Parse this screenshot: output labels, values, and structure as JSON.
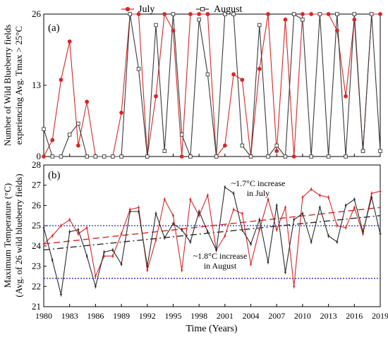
{
  "chart_data": [
    {
      "type": "line",
      "panel_label": "(a)",
      "ylabel_lines": [
        "Number of Wild Blueberry fields",
        "experiencing Avg. Tmax > 25°C"
      ],
      "ylim": [
        0,
        26
      ],
      "yticks": [
        0,
        13,
        26
      ],
      "legend_position": "top",
      "x": [
        1980,
        1981,
        1982,
        1983,
        1984,
        1985,
        1986,
        1987,
        1988,
        1989,
        1990,
        1991,
        1992,
        1993,
        1994,
        1995,
        1996,
        1997,
        1998,
        1999,
        2000,
        2001,
        2002,
        2003,
        2004,
        2005,
        2006,
        2007,
        2008,
        2009,
        2010,
        2011,
        2012,
        2013,
        2014,
        2015,
        2016,
        2017,
        2018,
        2019
      ],
      "series": [
        {
          "name": "July",
          "color": "#d62728",
          "marker": "circle-filled",
          "values": [
            0,
            3,
            14,
            21,
            2,
            10,
            0,
            0,
            0,
            8,
            26,
            26,
            0,
            11,
            26,
            23,
            0,
            26,
            26,
            26,
            0,
            2,
            15,
            14,
            0,
            16,
            26,
            1,
            25,
            0,
            26,
            26,
            26,
            26,
            23,
            11,
            25,
            1,
            26,
            26
          ]
        },
        {
          "name": "August",
          "color": "#3a3a3a",
          "marker": "square-open",
          "values": [
            5,
            0,
            0,
            4,
            6,
            0,
            0,
            0,
            0,
            0,
            26,
            16,
            0,
            24,
            1,
            26,
            4,
            0,
            25,
            15,
            0,
            26,
            26,
            2,
            0,
            24,
            0,
            2,
            0,
            26,
            25,
            0,
            26,
            0,
            26,
            0,
            26,
            1,
            26,
            1
          ]
        }
      ]
    },
    {
      "type": "line",
      "panel_label": "(b)",
      "xlabel": "Time (Years)",
      "ylabel_lines": [
        "Maximum Temperature (°C)",
        "(Avg. of 26 wild blueberry fields)"
      ],
      "ylim": [
        21,
        28
      ],
      "yticks": [
        21,
        22,
        23,
        24,
        25,
        26,
        27,
        28
      ],
      "xticks": [
        1980,
        1983,
        1986,
        1989,
        1992,
        1995,
        1998,
        2001,
        2004,
        2007,
        2010,
        2013,
        2016,
        2019
      ],
      "x": [
        1980,
        1981,
        1982,
        1983,
        1984,
        1985,
        1986,
        1987,
        1988,
        1989,
        1990,
        1991,
        1992,
        1993,
        1994,
        1995,
        1996,
        1997,
        1998,
        1999,
        2000,
        2001,
        2002,
        2003,
        2004,
        2005,
        2006,
        2007,
        2008,
        2009,
        2010,
        2011,
        2012,
        2013,
        2014,
        2015,
        2016,
        2017,
        2018,
        2019
      ],
      "series": [
        {
          "name": "July",
          "color": "#d62728",
          "values": [
            24.1,
            24.5,
            25.0,
            25.3,
            24.6,
            24.9,
            22.5,
            23.5,
            23.5,
            24.6,
            25.8,
            25.9,
            22.8,
            24.3,
            26.3,
            25.5,
            22.8,
            26.3,
            25.5,
            26.5,
            23.8,
            24.5,
            25.8,
            25.6,
            23.1,
            24.8,
            26.3,
            24.8,
            25.9,
            22.0,
            26.4,
            26.8,
            26.5,
            26.4,
            25.0,
            24.9,
            25.9,
            24.6,
            26.6,
            26.7
          ]
        },
        {
          "name": "August",
          "color": "#2b2b2b",
          "values": [
            24.9,
            23.3,
            21.6,
            24.7,
            24.8,
            23.5,
            22.0,
            23.7,
            23.8,
            23.1,
            25.7,
            25.7,
            23.0,
            25.6,
            24.4,
            25.1,
            24.8,
            24.2,
            25.7,
            24.7,
            23.8,
            26.9,
            26.6,
            24.8,
            24.1,
            25.3,
            23.2,
            26.0,
            22.7,
            25.3,
            25.6,
            24.2,
            25.9,
            24.5,
            24.2,
            26.0,
            26.3,
            24.7,
            26.4,
            24.6
          ]
        }
      ],
      "trendlines": [
        {
          "series": "July",
          "start": [
            1980,
            24.1
          ],
          "end": [
            2019,
            25.9
          ],
          "style": "dashed",
          "color": "#d62728"
        },
        {
          "series": "August",
          "start": [
            1980,
            23.8
          ],
          "end": [
            2019,
            25.5
          ],
          "style": "dash-dot",
          "color": "#2b2b2b"
        }
      ],
      "reference_lines": [
        25.0,
        22.4
      ],
      "reference_line_color": "#1f2fbf",
      "annotations": [
        {
          "lines": [
            "~1.7°C increase",
            "in July"
          ]
        },
        {
          "lines": [
            "~1.8°C increase",
            "in August"
          ]
        }
      ]
    }
  ]
}
